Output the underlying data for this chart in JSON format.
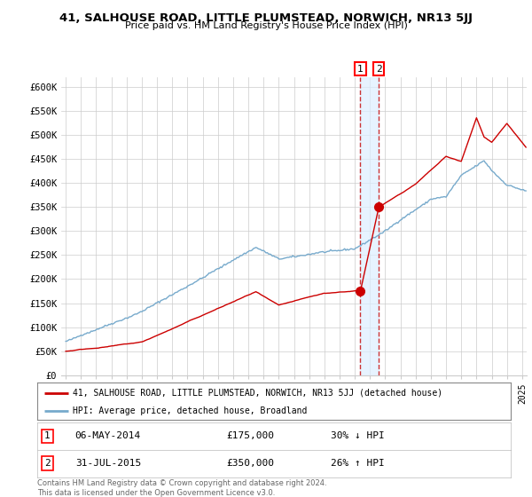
{
  "title": "41, SALHOUSE ROAD, LITTLE PLUMSTEAD, NORWICH, NR13 5JJ",
  "subtitle": "Price paid vs. HM Land Registry's House Price Index (HPI)",
  "red_label": "41, SALHOUSE ROAD, LITTLE PLUMSTEAD, NORWICH, NR13 5JJ (detached house)",
  "blue_label": "HPI: Average price, detached house, Broadland",
  "transaction1_date": "06-MAY-2014",
  "transaction1_price": "£175,000",
  "transaction1_hpi": "30% ↓ HPI",
  "transaction2_date": "31-JUL-2015",
  "transaction2_price": "£350,000",
  "transaction2_hpi": "26% ↑ HPI",
  "footer": "Contains HM Land Registry data © Crown copyright and database right 2024.\nThis data is licensed under the Open Government Licence v3.0.",
  "red_color": "#cc0000",
  "blue_color": "#77aacc",
  "vline_color": "#cc3333",
  "vband_color": "#ddeeff",
  "background_color": "#ffffff",
  "grid_color": "#cccccc",
  "ylim": [
    0,
    620000
  ],
  "yticks": [
    0,
    50000,
    100000,
    150000,
    200000,
    250000,
    300000,
    350000,
    400000,
    450000,
    500000,
    550000,
    600000
  ],
  "ytick_labels": [
    "£0",
    "£50K",
    "£100K",
    "£150K",
    "£200K",
    "£250K",
    "£300K",
    "£350K",
    "£400K",
    "£450K",
    "£500K",
    "£550K",
    "£600K"
  ],
  "marker1_x": 2014.37,
  "marker1_y": 175000,
  "marker2_x": 2015.58,
  "marker2_y": 350000,
  "vline1_x": 2014.37,
  "vline2_x": 2015.58,
  "xmin": 1994.7,
  "xmax": 2025.3,
  "xtick_start": 1995,
  "xtick_end": 2025
}
